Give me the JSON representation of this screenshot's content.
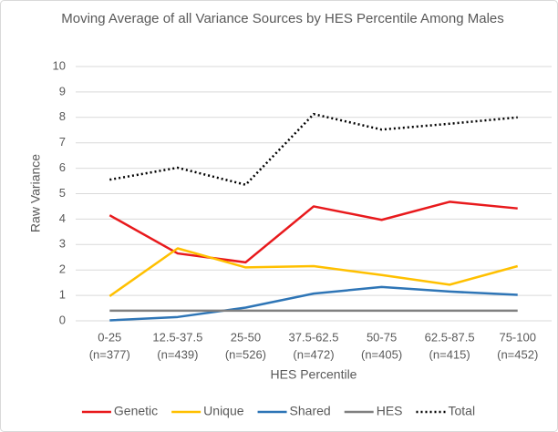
{
  "chart_data": {
    "type": "line",
    "title": "Moving Average of all Variance Sources by HES Percentile Among Males",
    "x_label": "HES Percentile",
    "y_label": "Raw Variance",
    "categories": [
      "0-25",
      "12.5-37.5",
      "25-50",
      "37.5-62.5",
      "50-75",
      "62.5-87.5",
      "75-100"
    ],
    "category_notes": [
      "(n=377)",
      "(n=439)",
      "(n=526)",
      "(n=472)",
      "(n=405)",
      "(n=415)",
      "(n=452)"
    ],
    "ylim": [
      0,
      10
    ],
    "yticks": [
      0,
      1,
      2,
      3,
      4,
      5,
      6,
      7,
      8,
      9,
      10
    ],
    "grid": true,
    "legend": "bottom",
    "series": [
      {
        "name": "Genetic",
        "color": "#e8191c",
        "line_style": "solid",
        "values": [
          4.15,
          2.65,
          2.3,
          4.5,
          3.97,
          4.68,
          4.42
        ]
      },
      {
        "name": "Unique",
        "color": "#ffc000",
        "line_style": "solid",
        "values": [
          0.97,
          2.85,
          2.1,
          2.15,
          1.8,
          1.42,
          2.15
        ]
      },
      {
        "name": "Shared",
        "color": "#2e75b6",
        "line_style": "solid",
        "values": [
          0.02,
          0.15,
          0.52,
          1.07,
          1.33,
          1.15,
          1.02
        ]
      },
      {
        "name": "HES",
        "color": "#808080",
        "line_style": "solid",
        "values": [
          0.4,
          0.4,
          0.4,
          0.4,
          0.4,
          0.4,
          0.4
        ]
      },
      {
        "name": "Total",
        "color": "#000000",
        "line_style": "dotted",
        "values": [
          5.55,
          6.02,
          5.35,
          8.13,
          7.52,
          7.75,
          8.0
        ]
      }
    ]
  }
}
